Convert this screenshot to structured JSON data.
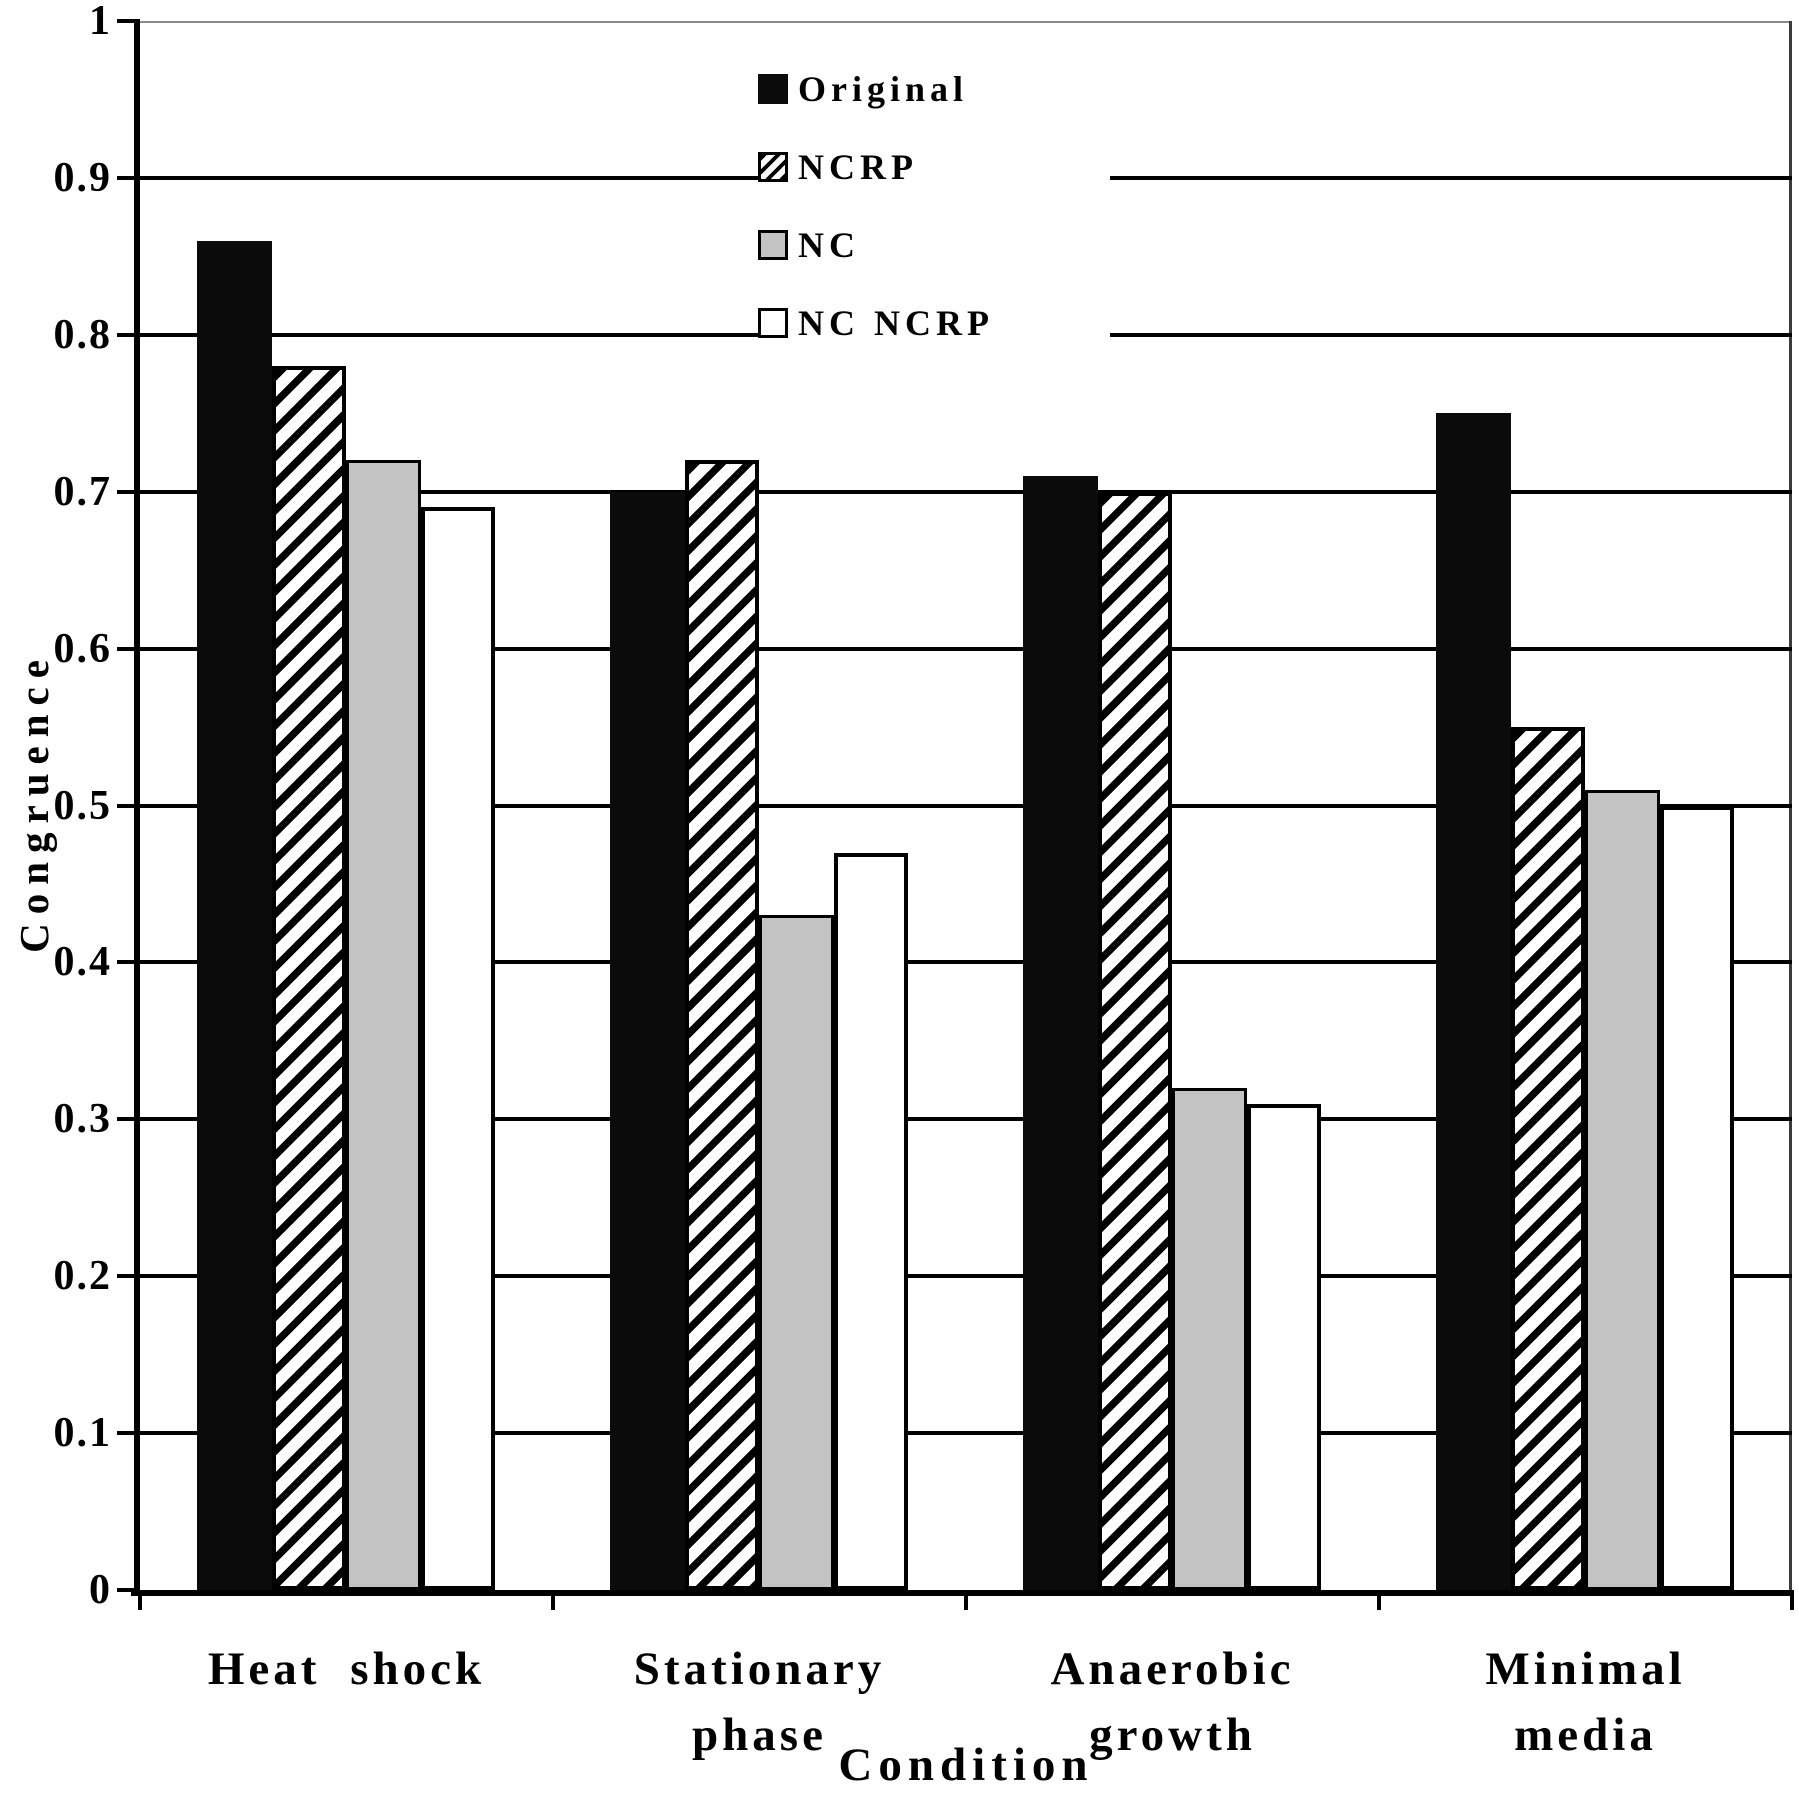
{
  "figure": {
    "background": "#ffffff",
    "text_color": "#000000"
  },
  "chart_data": {
    "type": "bar",
    "title": "",
    "xlabel": "Condition",
    "ylabel": "Congruence",
    "ylim": [
      0,
      1
    ],
    "ytick_step": 0.1,
    "ytick_labels": [
      "1",
      "0.9",
      "0.8",
      "0.7",
      "0.6",
      "0.5",
      "0.4",
      "0.3",
      "0.2",
      "0.1",
      "0"
    ],
    "grid": true,
    "legend_position": "top-center",
    "categories": [
      "Heat shock",
      "Stationary phase",
      "Anaerobic growth",
      "Minimal media"
    ],
    "series": [
      {
        "name": "Original",
        "style": "solid-black",
        "color": "#0b0b0b",
        "values": [
          0.86,
          0.7,
          0.71,
          0.75
        ]
      },
      {
        "name": "NCRP",
        "style": "diagonal-hatch",
        "color": "#000000",
        "values": [
          0.78,
          0.72,
          0.7,
          0.55
        ]
      },
      {
        "name": "NC",
        "style": "solid-gray",
        "color": "#c3c3c3",
        "values": [
          0.72,
          0.43,
          0.32,
          0.51
        ]
      },
      {
        "name": "NC NCRP",
        "style": "solid-white",
        "color": "#ffffff",
        "values": [
          0.69,
          0.47,
          0.31,
          0.5
        ]
      }
    ]
  }
}
